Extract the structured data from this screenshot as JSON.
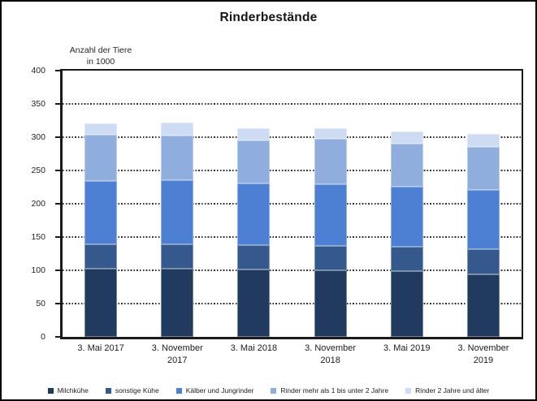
{
  "title": "Rinderbestände",
  "y_axis_label": {
    "line1": "Anzahl der Tiere",
    "line2": "in 1000"
  },
  "chart_data": {
    "type": "bar",
    "stacked": true,
    "title": "Rinderbestände",
    "ylabel": "Anzahl der Tiere in 1000",
    "xlabel": "",
    "ylim": [
      0,
      400
    ],
    "ytick_step": 50,
    "grid": "horizontal-dotted",
    "legend_position": "bottom",
    "categories": [
      "3. Mai 2017",
      "3. November 2017",
      "3. Mai 2018",
      "3. November 2018",
      "3. Mai 2019",
      "3. November 2019"
    ],
    "series": [
      {
        "name": "Milchkühe",
        "color": "#203A60",
        "values": [
          102,
          102,
          101,
          100,
          99,
          94
        ]
      },
      {
        "name": "sonstige Kühe",
        "color": "#35598C",
        "values": [
          37,
          37,
          37,
          36,
          36,
          38
        ]
      },
      {
        "name": "Kälber und Jungrinder",
        "color": "#4D80D2",
        "values": [
          95,
          97,
          93,
          93,
          91,
          89
        ]
      },
      {
        "name": "Rinder mehr als 1 bis unter 2 Jahre",
        "color": "#8FAEDE",
        "values": [
          70,
          67,
          64,
          68,
          64,
          64
        ]
      },
      {
        "name": "Rinder 2 Jahre und älter",
        "color": "#CDDCF2",
        "values": [
          17,
          19,
          18,
          17,
          18,
          20
        ]
      }
    ],
    "totals": [
      321,
      322,
      313,
      314,
      308,
      305
    ]
  },
  "axis_color": "#1a1a1a"
}
